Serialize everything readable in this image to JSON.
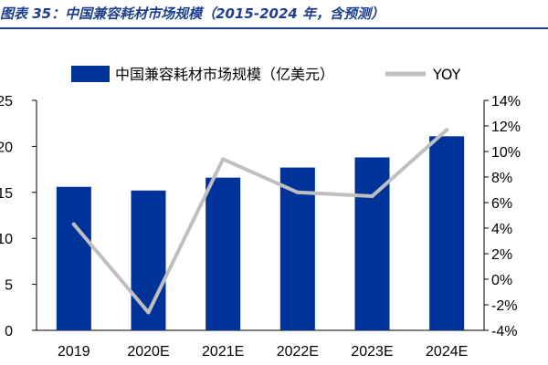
{
  "figure": {
    "title": "图表 35：中国兼容耗材市场规模（2015-2024 年，含预测）"
  },
  "colors": {
    "bar": "#003399",
    "line": "#bfbfbf",
    "title": "#1f3f8c"
  },
  "chart_data": {
    "type": "bar",
    "categories": [
      "2019",
      "2020E",
      "2021E",
      "2022E",
      "2023E",
      "2024E"
    ],
    "series": [
      {
        "name": "中国兼容耗材市场规模（亿美元）",
        "type": "bar",
        "axis": "left",
        "values": [
          15.6,
          15.2,
          16.6,
          17.7,
          18.8,
          21.1
        ]
      },
      {
        "name": "YOY",
        "type": "line",
        "axis": "right",
        "values": [
          4.3,
          -2.6,
          9.4,
          6.8,
          6.5,
          11.7
        ]
      }
    ],
    "y_left": {
      "min": 0,
      "max": 25,
      "ticks": [
        "0",
        "5",
        "10",
        "15",
        "20",
        "25"
      ]
    },
    "y_right": {
      "min": -4,
      "max": 14,
      "ticks": [
        "-4%",
        "-2%",
        "0%",
        "2%",
        "4%",
        "6%",
        "8%",
        "10%",
        "12%",
        "14%"
      ]
    },
    "legend": "top",
    "grid": false
  }
}
